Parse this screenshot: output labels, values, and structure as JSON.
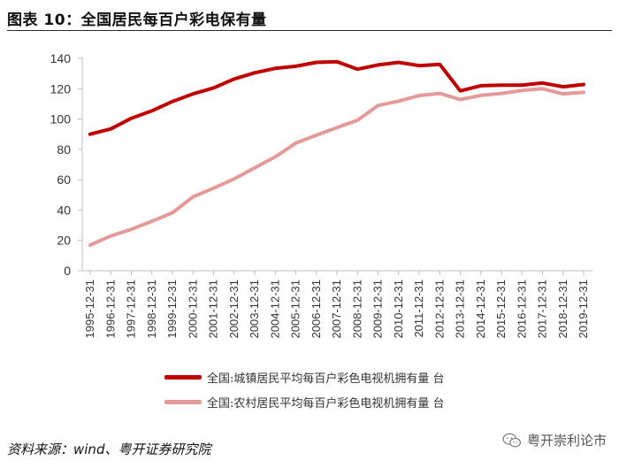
{
  "title": "图表 10：全国居民每百户彩电保有量",
  "source": "资料来源：wind、粤开证券研究院",
  "watermark": "粤开崇利论市",
  "colors": {
    "series1": "#c00000",
    "series2": "#e59a9a",
    "axis": "#bfbfbf"
  },
  "icons": {
    "watermark": "wechat-icon"
  },
  "chart_data": {
    "type": "line",
    "x": [
      "1995-12-31",
      "1996-12-31",
      "1997-12-31",
      "1998-12-31",
      "1999-12-31",
      "2000-12-31",
      "2001-12-31",
      "2002-12-31",
      "2003-12-31",
      "2004-12-31",
      "2005-12-31",
      "2006-12-31",
      "2007-12-31",
      "2008-12-31",
      "2009-12-31",
      "2010-12-31",
      "2011-12-31",
      "2012-12-31",
      "2013-12-31",
      "2014-12-31",
      "2015-12-31",
      "2016-12-31",
      "2017-12-31",
      "2018-12-31",
      "2019-12-31"
    ],
    "y_ticks": [
      "0",
      "20",
      "40",
      "60",
      "80",
      "100",
      "120",
      "140"
    ],
    "ylim": [
      0,
      140
    ],
    "series": [
      {
        "name": "全国:城镇居民平均每百户彩色电视机拥有量 台",
        "values": [
          90.0,
          93.5,
          100.5,
          105.4,
          111.6,
          116.6,
          120.5,
          126.4,
          130.5,
          133.4,
          134.8,
          137.4,
          137.8,
          132.9,
          135.7,
          137.4,
          135.2,
          136.1,
          118.6,
          122.0,
          122.3,
          122.3,
          123.8,
          121.3,
          122.8
        ]
      },
      {
        "name": "全国:农村居民平均每百户彩色电视机拥有量 台",
        "values": [
          16.9,
          22.9,
          27.3,
          32.6,
          38.2,
          48.7,
          54.4,
          60.5,
          67.8,
          75.1,
          84.1,
          89.4,
          94.4,
          99.2,
          108.9,
          111.8,
          115.5,
          116.9,
          112.9,
          115.6,
          116.9,
          118.8,
          120.0,
          116.6,
          117.6
        ]
      }
    ]
  }
}
